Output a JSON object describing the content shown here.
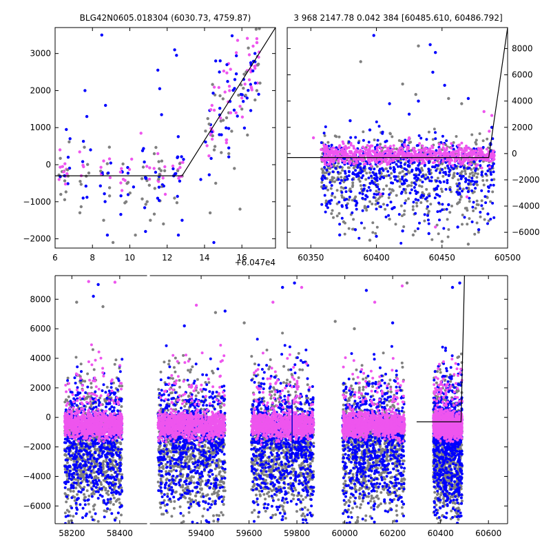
{
  "chart_data": [
    {
      "type": "scatter",
      "panel": "top-left",
      "title": "BLG42N0605.018304 (6030.73, 4759.87)",
      "xlim": [
        6,
        17.8
      ],
      "ylim": [
        -2250,
        3700
      ],
      "x_offset_label": "+6.047e4",
      "x_ticks": [
        6,
        8,
        10,
        12,
        14,
        16
      ],
      "x_tick_labels": [
        "6",
        "8",
        "10",
        "12",
        "14",
        "16"
      ],
      "y_ticks": [
        -2000,
        -1000,
        0,
        1000,
        2000,
        3000
      ],
      "y_tick_labels": [
        "−2000",
        "−1000",
        "0",
        "1000",
        "2000",
        "3000"
      ],
      "y_axis_side": "left",
      "series": [
        {
          "color": "#0000ff",
          "points": [
            [
              6.5,
              -300
            ],
            [
              6.6,
              950
            ],
            [
              6.8,
              700
            ],
            [
              7.5,
              -900
            ],
            [
              7.6,
              2000
            ],
            [
              7.7,
              1300
            ],
            [
              8.5,
              3500
            ],
            [
              8.7,
              1600
            ],
            [
              8.8,
              -1900
            ],
            [
              11.5,
              2550
            ],
            [
              11.6,
              2050
            ],
            [
              11.7,
              1350
            ],
            [
              12.4,
              3100
            ],
            [
              12.5,
              2950
            ],
            [
              12.6,
              -1900
            ],
            [
              12.8,
              -1500
            ],
            [
              14.6,
              2800
            ],
            [
              14.8,
              2500
            ],
            [
              15.2,
              2700
            ],
            [
              15.7,
              2450
            ],
            [
              16.1,
              2300
            ],
            [
              16.5,
              2700
            ],
            [
              16.7,
              3000
            ],
            [
              16.9,
              1900
            ],
            [
              14.5,
              -2100
            ],
            [
              13.8,
              -400
            ],
            [
              6.7,
              200
            ],
            [
              7.9,
              400
            ],
            [
              9.6,
              -200
            ],
            [
              10.2,
              -600
            ]
          ]
        },
        {
          "color": "#808080",
          "points": [
            [
              8.6,
              -1500
            ],
            [
              9.1,
              -2100
            ],
            [
              9.8,
              -1000
            ],
            [
              10.3,
              -1900
            ],
            [
              11.1,
              -1500
            ],
            [
              11.8,
              -1600
            ],
            [
              14.6,
              -500
            ],
            [
              15.0,
              1200
            ],
            [
              15.3,
              300
            ],
            [
              15.6,
              -100
            ],
            [
              16.0,
              1500
            ],
            [
              16.3,
              800
            ],
            [
              16.8,
              2000
            ],
            [
              14.3,
              -1300
            ],
            [
              15.9,
              -1200
            ]
          ]
        },
        {
          "color": "#ee55ee",
          "points": [
            [
              6.4,
              -50
            ],
            [
              7.4,
              -300
            ],
            [
              8.6,
              100
            ],
            [
              9.5,
              -200
            ],
            [
              10.1,
              150
            ],
            [
              10.6,
              850
            ],
            [
              11.3,
              -100
            ],
            [
              11.5,
              300
            ],
            [
              11.9,
              -800
            ],
            [
              16.6,
              3200
            ],
            [
              16.8,
              3400
            ],
            [
              16.9,
              2900
            ],
            [
              16.5,
              2100
            ],
            [
              16.7,
              2600
            ],
            [
              16.0,
              1800
            ],
            [
              15.4,
              1400
            ]
          ]
        }
      ],
      "model_line": [
        [
          6,
          -300
        ],
        [
          12.8,
          -300
        ],
        [
          17.8,
          3700
        ]
      ]
    },
    {
      "type": "scatter",
      "panel": "top-right",
      "title": "3 968 2147.78 0.042 384 [60485.610, 60486.792]",
      "xlim": [
        60332,
        60500
      ],
      "ylim": [
        -7200,
        9600
      ],
      "x_ticks": [
        60350,
        60400,
        60450,
        60500
      ],
      "x_tick_labels": [
        "60350",
        "60400",
        "60450",
        "60500"
      ],
      "y_ticks": [
        -6000,
        -4000,
        -2000,
        0,
        2000,
        4000,
        6000,
        8000
      ],
      "y_tick_labels": [
        "−6000",
        "−4000",
        "−2000",
        "0",
        "2000",
        "4000",
        "6000",
        "8000"
      ],
      "y_axis_side": "right",
      "series": [
        {
          "color": "#0000ff",
          "points": [
            [
              60398,
              9000
            ],
            [
              60441,
              8300
            ],
            [
              60445,
              7700
            ],
            [
              60443,
              6200
            ],
            [
              60432,
              4000
            ],
            [
              60452,
              5200
            ],
            [
              60470,
              4200
            ],
            [
              60410,
              3800
            ],
            [
              60425,
              3000
            ],
            [
              60380,
              2500
            ],
            [
              60395,
              1800
            ],
            [
              60488,
              2000
            ],
            [
              60372,
              -6200
            ],
            [
              60384,
              -5800
            ],
            [
              60400,
              -6300
            ],
            [
              60420,
              -5900
            ],
            [
              60440,
              -6100
            ],
            [
              60462,
              -5600
            ],
            [
              60478,
              -5800
            ],
            [
              60485,
              -4600
            ],
            [
              60392,
              -3200
            ],
            [
              60412,
              -4200
            ],
            [
              60430,
              -3500
            ],
            [
              60455,
              -3900
            ],
            [
              60470,
              -2900
            ]
          ]
        },
        {
          "color": "#808080",
          "points": [
            [
              60432,
              8200
            ],
            [
              60388,
              7000
            ],
            [
              60430,
              4500
            ],
            [
              60420,
              5300
            ],
            [
              60455,
              4200
            ],
            [
              60465,
              3800
            ],
            [
              60410,
              -5000
            ],
            [
              60395,
              -6600
            ],
            [
              60450,
              -6700
            ],
            [
              60375,
              -5200
            ],
            [
              60470,
              -6900
            ],
            [
              60428,
              -6200
            ],
            [
              60440,
              -4400
            ],
            [
              60400,
              -3600
            ],
            [
              60380,
              -2700
            ]
          ]
        },
        {
          "color": "#ee55ee",
          "points": [
            [
              60352,
              1200
            ],
            [
              60358,
              300
            ],
            [
              60365,
              -400
            ],
            [
              60372,
              600
            ],
            [
              60380,
              -200
            ],
            [
              60392,
              300
            ],
            [
              60404,
              -500
            ],
            [
              60418,
              400
            ],
            [
              60425,
              1200
            ],
            [
              60436,
              -300
            ],
            [
              60448,
              700
            ],
            [
              60460,
              -600
            ],
            [
              60474,
              200
            ],
            [
              60482,
              3200
            ],
            [
              60486,
              1700
            ],
            [
              60488,
              2900
            ],
            [
              60445,
              -5600
            ],
            [
              60403,
              -3100
            ],
            [
              60469,
              -3300
            ]
          ]
        }
      ],
      "model_line": [
        [
          60332,
          -300
        ],
        [
          60485.6,
          -300
        ],
        [
          60500,
          9600
        ]
      ]
    },
    {
      "type": "scatter",
      "panel": "bottom",
      "xlim": [
        58130,
        60680
      ],
      "ylim": [
        -7200,
        9600
      ],
      "x_ticks": [
        58200,
        58400,
        59400,
        59600,
        59800,
        60000,
        60200,
        60400,
        60600
      ],
      "x_tick_labels": [
        "58200",
        "58400",
        "59400",
        "59600",
        "59800",
        "60000",
        "60200",
        "60400",
        "60600"
      ],
      "y_ticks": [
        -6000,
        -4000,
        -2000,
        0,
        2000,
        4000,
        6000,
        8000
      ],
      "y_tick_labels": [
        "−6000",
        "−4000",
        "−2000",
        "0",
        "2000",
        "4000",
        "6000",
        "8000"
      ],
      "y_axis_side": "left",
      "axis_break": {
        "after": 58520,
        "before": 59180
      },
      "season_bands": [
        [
          58170,
          58410
        ],
        [
          59220,
          59500
        ],
        [
          59610,
          59870
        ],
        [
          59990,
          60250
        ],
        [
          60370,
          60490
        ]
      ],
      "series": [
        {
          "color": "#808080",
          "name": ""
        },
        {
          "color": "#0000ff",
          "name": ""
        },
        {
          "color": "#ee55ee",
          "name": ""
        }
      ],
      "outliers": [
        {
          "color": "#0000ff",
          "points": [
            [
              58310,
              9000
            ],
            [
              58290,
              8200
            ],
            [
              59500,
              7200
            ],
            [
              59790,
              9100
            ],
            [
              59740,
              8800
            ],
            [
              60090,
              8600
            ],
            [
              60450,
              8800
            ],
            [
              60480,
              9100
            ],
            [
              60200,
              6400
            ],
            [
              59330,
              6200
            ]
          ]
        },
        {
          "color": "#ee55ee",
          "points": [
            [
              58270,
              9200
            ],
            [
              58380,
              9150
            ],
            [
              59380,
              7600
            ],
            [
              59820,
              8800
            ],
            [
              60240,
              8900
            ],
            [
              60125,
              7800
            ],
            [
              59700,
              7800
            ]
          ]
        },
        {
          "color": "#808080",
          "points": [
            [
              58220,
              7800
            ],
            [
              58330,
              7500
            ],
            [
              59460,
              7100
            ],
            [
              59580,
              6400
            ],
            [
              60040,
              6000
            ],
            [
              60260,
              9100
            ],
            [
              59960,
              6500
            ]
          ]
        }
      ],
      "model_line": [
        [
          60300,
          -300
        ],
        [
          60485.6,
          -300
        ],
        [
          60500,
          9600
        ]
      ]
    }
  ]
}
